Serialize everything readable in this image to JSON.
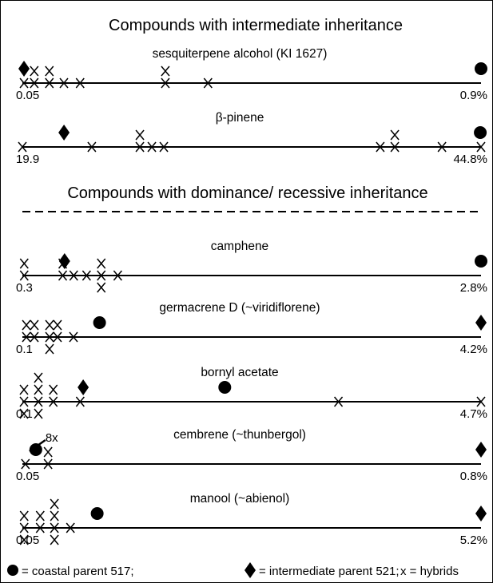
{
  "sections": [
    {
      "title": "Compounds with intermediate inheritance",
      "rows": [
        {
          "label": "sesquiterpene alcohol (KI 1627)",
          "range": [
            0.05,
            0.9
          ],
          "range_labels": [
            "0.05",
            "0.9%"
          ],
          "coastal": 0.9,
          "intermediate": 0.053,
          "hybrids": [
            0.053,
            0.072,
            0.072,
            0.1,
            0.1,
            0.127,
            0.157,
            0.315,
            0.315,
            0.394
          ]
        },
        {
          "label": "β-pinene",
          "range": [
            19.9,
            44.8
          ],
          "range_labels": [
            "19.9",
            "44.8%"
          ],
          "coastal": 44.76,
          "intermediate": 22.16,
          "hybrids": [
            19.9,
            23.67,
            26.28,
            26.28,
            26.93,
            27.58,
            39.33,
            40.12,
            40.12,
            42.68,
            44.8
          ]
        }
      ]
    },
    {
      "title": "Compounds with dominance/ recessive inheritance",
      "rows": [
        {
          "label": "camphene",
          "range": [
            0.3,
            2.8
          ],
          "range_labels": [
            "0.3",
            "2.8%"
          ],
          "coastal": 2.8,
          "intermediate": 0.53,
          "hybrids": [
            0.31,
            0.31,
            0.52,
            0.52,
            0.58,
            0.65,
            0.73,
            0.73,
            0.73,
            0.82
          ]
        },
        {
          "label": "germacrene D (~viridiflorene)",
          "range": [
            0.1,
            4.2
          ],
          "range_labels": [
            "0.1",
            "4.2%"
          ],
          "coastal": 0.79,
          "intermediate": 4.2,
          "hybrids": [
            0.136,
            0.136,
            0.207,
            0.207,
            0.343,
            0.343,
            0.343,
            0.414,
            0.414,
            0.557
          ]
        },
        {
          "label": "bornyl acetate",
          "range": [
            0.1,
            4.7
          ],
          "range_labels": [
            "0.1",
            "4.7%"
          ],
          "coastal": 2.13,
          "intermediate": 0.71,
          "hybrids": [
            0.116,
            0.116,
            0.116,
            0.26,
            0.26,
            0.26,
            0.26,
            0.41,
            0.41,
            0.68,
            3.27,
            4.7
          ]
        },
        {
          "label": "cembrene (~thunbergol)",
          "range": [
            0.05,
            0.8
          ],
          "range_labels": [
            "0.05",
            "0.8%"
          ],
          "coastal": 0.072,
          "intermediate": 0.8,
          "hybrids": [
            0.055,
            0.092,
            0.092
          ],
          "annotation": "8x"
        },
        {
          "label": "manool (~abienol)",
          "range": [
            0.05,
            5.2
          ],
          "range_labels": [
            "0.05",
            "5.2%"
          ],
          "coastal": 0.89,
          "intermediate": 5.2,
          "hybrids": [
            0.07,
            0.07,
            0.07,
            0.25,
            0.25,
            0.41,
            0.41,
            0.41,
            0.41,
            0.59
          ]
        }
      ]
    }
  ],
  "legend": {
    "coastal": "= coastal parent 517;",
    "intermediate": "= intermediate parent 521;",
    "hybrids": "x = hybrids"
  }
}
